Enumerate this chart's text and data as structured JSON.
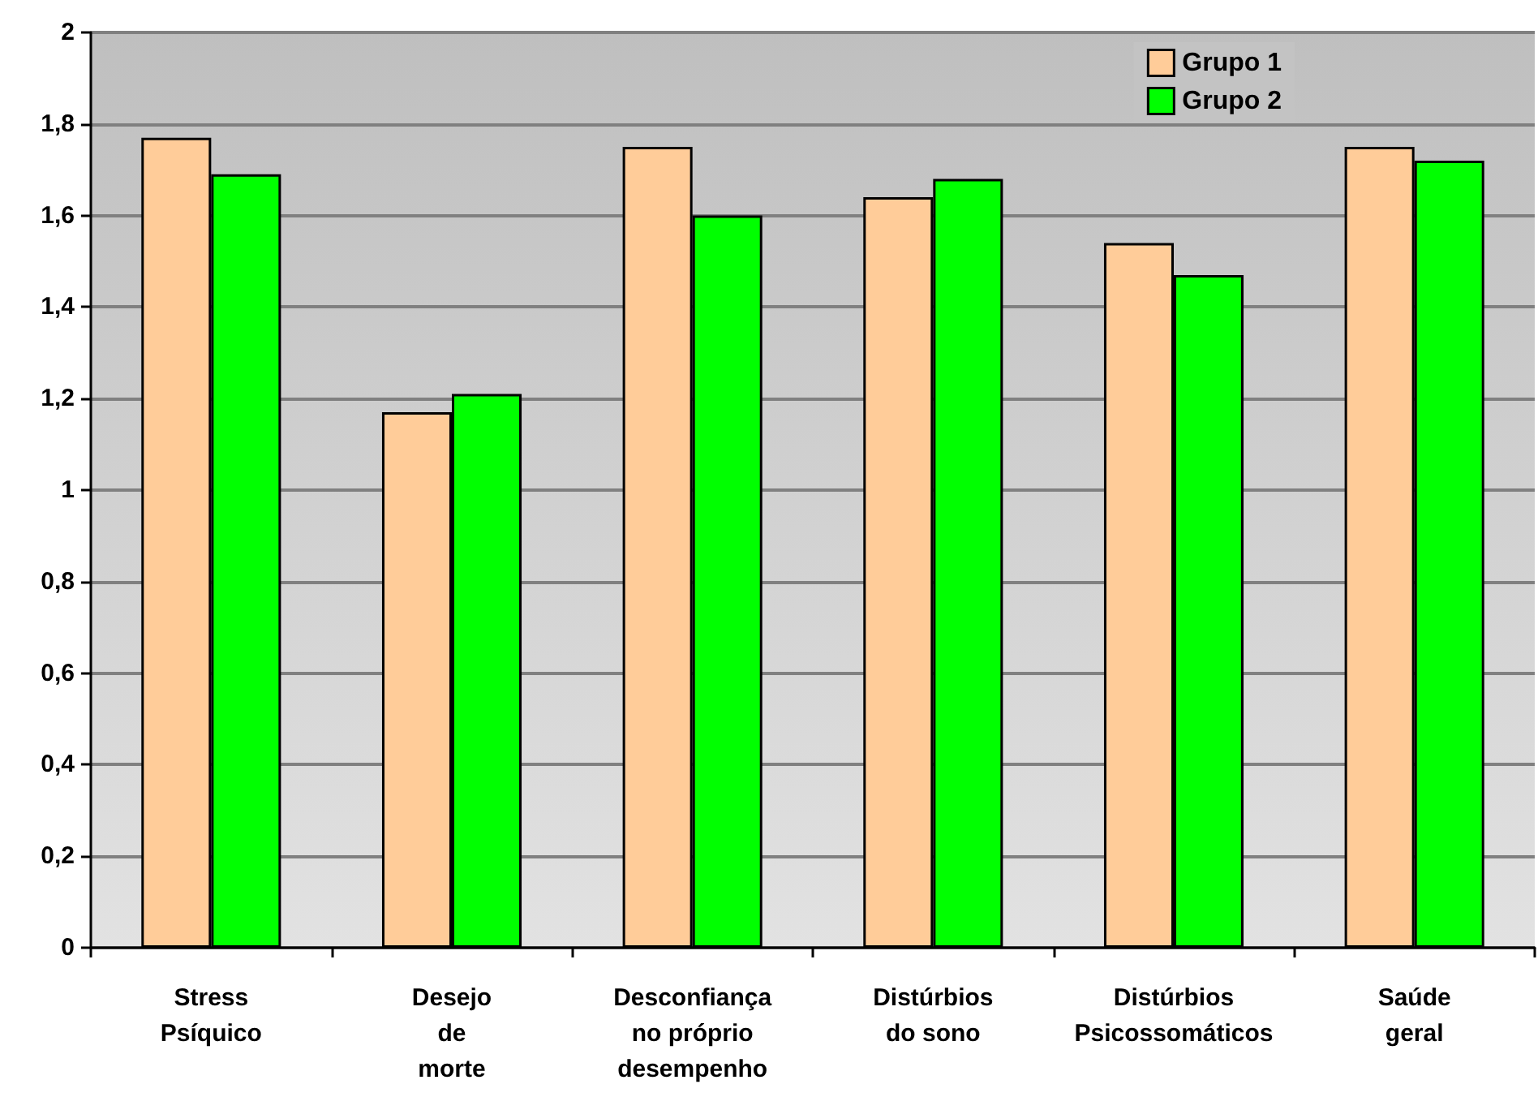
{
  "chart_data": {
    "type": "bar",
    "categories": [
      "Stress\nPsíquico",
      "Desejo\nde\nmorte",
      "Desconfiança\nno próprio\ndesempenho",
      "Distúrbios\ndo sono",
      "Distúrbios\nPsicossomáticos",
      "Saúde\ngeral"
    ],
    "series": [
      {
        "name": "Grupo 1",
        "color": "#ffcc99",
        "values": [
          1.77,
          1.17,
          1.75,
          1.64,
          1.54,
          1.75
        ]
      },
      {
        "name": "Grupo 2",
        "color": "#00ff00",
        "values": [
          1.69,
          1.21,
          1.6,
          1.68,
          1.47,
          1.72
        ]
      }
    ],
    "ylim": [
      0,
      2
    ],
    "yticks": [
      0,
      {
        "value": 0.2,
        "label": "0,2"
      },
      {
        "value": 0.4,
        "label": "0,4"
      },
      {
        "value": 0.6,
        "label": "0,6"
      },
      {
        "value": 0.8,
        "label": "0,8"
      },
      1,
      {
        "value": 1.2,
        "label": "1,2"
      },
      {
        "value": 1.4,
        "label": "1,4"
      },
      {
        "value": 1.6,
        "label": "1,6"
      },
      {
        "value": 1.8,
        "label": "1,8"
      },
      2
    ],
    "grid": "y",
    "legend": "top right"
  }
}
